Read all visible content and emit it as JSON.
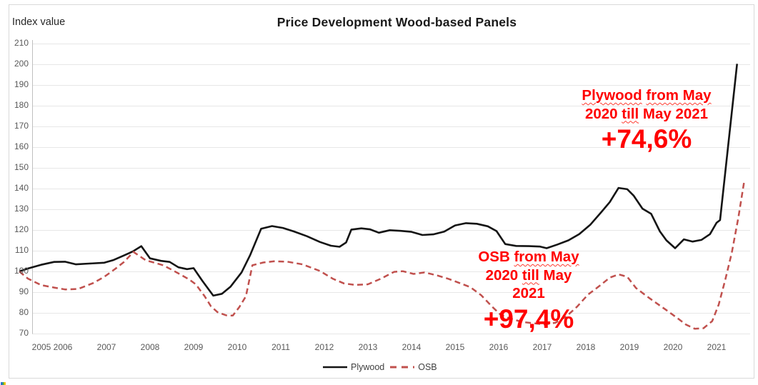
{
  "chart": {
    "title": "Price Development Wood-based Panels",
    "y_axis_title": "Index value",
    "colors": {
      "plywood_line": "#141414",
      "osb_line": "#c0504d",
      "grid": "#e7e7e7",
      "axis": "#bfbfbf",
      "tick_text": "#595959",
      "annotation_red": "#ff0000"
    }
  },
  "legend": {
    "plywood_label": "Plywood",
    "osb_label": "OSB"
  },
  "annotations": {
    "plywood": {
      "lines": [
        [
          {
            "t": "Plywood",
            "wavy": true
          },
          {
            "t": " ",
            "wavy": false
          },
          {
            "t": "from May",
            "wavy": true
          }
        ],
        [
          {
            "t": "2020 ",
            "wavy": false
          },
          {
            "t": "till",
            "wavy": true
          },
          {
            "t": " May 2021",
            "wavy": false
          }
        ]
      ],
      "pct": "+74,6%"
    },
    "osb": {
      "lines": [
        [
          {
            "t": "OSB ",
            "wavy": false
          },
          {
            "t": "from May",
            "wavy": true
          }
        ],
        [
          {
            "t": "2020 ",
            "wavy": false
          },
          {
            "t": "till",
            "wavy": true
          },
          {
            "t": " May",
            "wavy": false
          }
        ],
        [
          {
            "t": "2021",
            "wavy": false
          }
        ]
      ],
      "pct": "+97,4%"
    }
  },
  "chart_data": {
    "type": "line",
    "title": "Price Development Wood-based Panels",
    "ylabel": "Index value",
    "xlabel": "",
    "grid": true,
    "ylim": [
      70,
      210
    ],
    "y_ticks": [
      210,
      200,
      190,
      180,
      170,
      160,
      150,
      140,
      130,
      120,
      110,
      100,
      90,
      80,
      70
    ],
    "x_tick_labels": [
      "2005",
      "2006",
      "2007",
      "2008",
      "2009",
      "2010",
      "2011",
      "2012",
      "2013",
      "2014",
      "2015",
      "2016",
      "2017",
      "2018",
      "2019",
      "2020",
      "2021"
    ],
    "legend_position": "bottom",
    "series": [
      {
        "name": "Plywood",
        "style": "solid",
        "color": "#141414",
        "points": [
          [
            2005.0,
            100
          ],
          [
            2005.2,
            101.4
          ],
          [
            2005.5,
            103.2
          ],
          [
            2005.8,
            104.6
          ],
          [
            2006.05,
            104.7
          ],
          [
            2006.3,
            103.4
          ],
          [
            2006.6,
            103.8
          ],
          [
            2006.95,
            104.2
          ],
          [
            2007.15,
            105.4
          ],
          [
            2007.4,
            107.7
          ],
          [
            2007.6,
            109.6
          ],
          [
            2007.8,
            112.2
          ],
          [
            2008.0,
            106.3
          ],
          [
            2008.25,
            105.1
          ],
          [
            2008.45,
            104.6
          ],
          [
            2008.65,
            102.0
          ],
          [
            2008.85,
            101.1
          ],
          [
            2009.0,
            101.6
          ],
          [
            2009.2,
            95.5
          ],
          [
            2009.45,
            88.3
          ],
          [
            2009.65,
            89.2
          ],
          [
            2009.85,
            92.7
          ],
          [
            2010.1,
            99.5
          ],
          [
            2010.3,
            108.0
          ],
          [
            2010.55,
            120.6
          ],
          [
            2010.8,
            121.9
          ],
          [
            2011.05,
            121.0
          ],
          [
            2011.3,
            119.3
          ],
          [
            2011.6,
            117.0
          ],
          [
            2011.9,
            114.2
          ],
          [
            2012.15,
            112.4
          ],
          [
            2012.35,
            111.9
          ],
          [
            2012.5,
            114.0
          ],
          [
            2012.62,
            120.2
          ],
          [
            2012.85,
            120.8
          ],
          [
            2013.05,
            120.3
          ],
          [
            2013.25,
            118.7
          ],
          [
            2013.5,
            119.9
          ],
          [
            2013.75,
            119.6
          ],
          [
            2014.0,
            119.1
          ],
          [
            2014.25,
            117.6
          ],
          [
            2014.5,
            117.9
          ],
          [
            2014.75,
            119.2
          ],
          [
            2015.0,
            122.2
          ],
          [
            2015.25,
            123.3
          ],
          [
            2015.5,
            123.0
          ],
          [
            2015.75,
            121.8
          ],
          [
            2015.95,
            119.5
          ],
          [
            2016.15,
            113.2
          ],
          [
            2016.4,
            112.3
          ],
          [
            2016.7,
            112.2
          ],
          [
            2016.95,
            112.0
          ],
          [
            2017.1,
            111.2
          ],
          [
            2017.35,
            113.0
          ],
          [
            2017.6,
            115.0
          ],
          [
            2017.85,
            118.0
          ],
          [
            2018.1,
            122.5
          ],
          [
            2018.35,
            128.5
          ],
          [
            2018.55,
            133.5
          ],
          [
            2018.75,
            140.3
          ],
          [
            2018.95,
            139.7
          ],
          [
            2019.1,
            136.5
          ],
          [
            2019.3,
            130.3
          ],
          [
            2019.5,
            127.8
          ],
          [
            2019.7,
            119.3
          ],
          [
            2019.85,
            115.0
          ],
          [
            2020.05,
            111.2
          ],
          [
            2020.25,
            115.5
          ],
          [
            2020.45,
            114.4
          ],
          [
            2020.65,
            115.2
          ],
          [
            2020.85,
            118.0
          ],
          [
            2021.0,
            123.5
          ],
          [
            2021.08,
            124.8
          ],
          [
            2021.47,
            200.2
          ]
        ]
      },
      {
        "name": "OSB",
        "style": "dashed",
        "color": "#c0504d",
        "points": [
          [
            2005.0,
            100
          ],
          [
            2005.2,
            96.5
          ],
          [
            2005.5,
            93.4
          ],
          [
            2005.8,
            92.2
          ],
          [
            2006.05,
            91.3
          ],
          [
            2006.35,
            91.5
          ],
          [
            2006.7,
            94.4
          ],
          [
            2006.95,
            97.4
          ],
          [
            2007.2,
            101.2
          ],
          [
            2007.4,
            104.5
          ],
          [
            2007.62,
            109.4
          ],
          [
            2007.9,
            105.4
          ],
          [
            2008.1,
            104.2
          ],
          [
            2008.3,
            103.0
          ],
          [
            2008.5,
            100.8
          ],
          [
            2008.7,
            98.5
          ],
          [
            2008.9,
            96.1
          ],
          [
            2009.05,
            93.8
          ],
          [
            2009.25,
            88.1
          ],
          [
            2009.4,
            83.1
          ],
          [
            2009.55,
            80.3
          ],
          [
            2009.75,
            78.8
          ],
          [
            2009.9,
            78.7
          ],
          [
            2010.05,
            82.8
          ],
          [
            2010.2,
            88.0
          ],
          [
            2010.35,
            103.0
          ],
          [
            2010.6,
            104.3
          ],
          [
            2010.85,
            104.9
          ],
          [
            2011.15,
            104.7
          ],
          [
            2011.5,
            103.4
          ],
          [
            2011.9,
            100.2
          ],
          [
            2012.2,
            96.4
          ],
          [
            2012.45,
            94.2
          ],
          [
            2012.7,
            93.5
          ],
          [
            2013.0,
            93.8
          ],
          [
            2013.3,
            96.5
          ],
          [
            2013.6,
            99.8
          ],
          [
            2013.8,
            100.1
          ],
          [
            2014.05,
            98.8
          ],
          [
            2014.3,
            99.5
          ],
          [
            2014.6,
            98.0
          ],
          [
            2014.85,
            96.4
          ],
          [
            2015.1,
            94.4
          ],
          [
            2015.35,
            92.4
          ],
          [
            2015.6,
            88.5
          ],
          [
            2015.85,
            83.0
          ],
          [
            2016.05,
            79.0
          ],
          [
            2016.3,
            77.0
          ],
          [
            2016.55,
            75.6
          ],
          [
            2016.8,
            75.0
          ],
          [
            2017.05,
            74.4
          ],
          [
            2017.3,
            75.2
          ],
          [
            2017.55,
            78.2
          ],
          [
            2017.8,
            83.0
          ],
          [
            2018.05,
            88.8
          ],
          [
            2018.3,
            92.8
          ],
          [
            2018.55,
            97.0
          ],
          [
            2018.75,
            98.6
          ],
          [
            2018.95,
            97.4
          ],
          [
            2019.15,
            92.0
          ],
          [
            2019.4,
            88.0
          ],
          [
            2019.6,
            85.0
          ],
          [
            2019.85,
            81.3
          ],
          [
            2020.1,
            77.5
          ],
          [
            2020.3,
            74.3
          ],
          [
            2020.5,
            72.3
          ],
          [
            2020.7,
            72.6
          ],
          [
            2020.9,
            76.0
          ],
          [
            2021.05,
            84.0
          ],
          [
            2021.2,
            96.0
          ],
          [
            2021.35,
            109.0
          ],
          [
            2021.5,
            126.0
          ],
          [
            2021.64,
            144.2
          ]
        ]
      }
    ],
    "annotations_text": [
      "Plywood from May 2020 till May 2021 +74,6%",
      "OSB from May 2020 till May 2021 +97,4%"
    ]
  }
}
